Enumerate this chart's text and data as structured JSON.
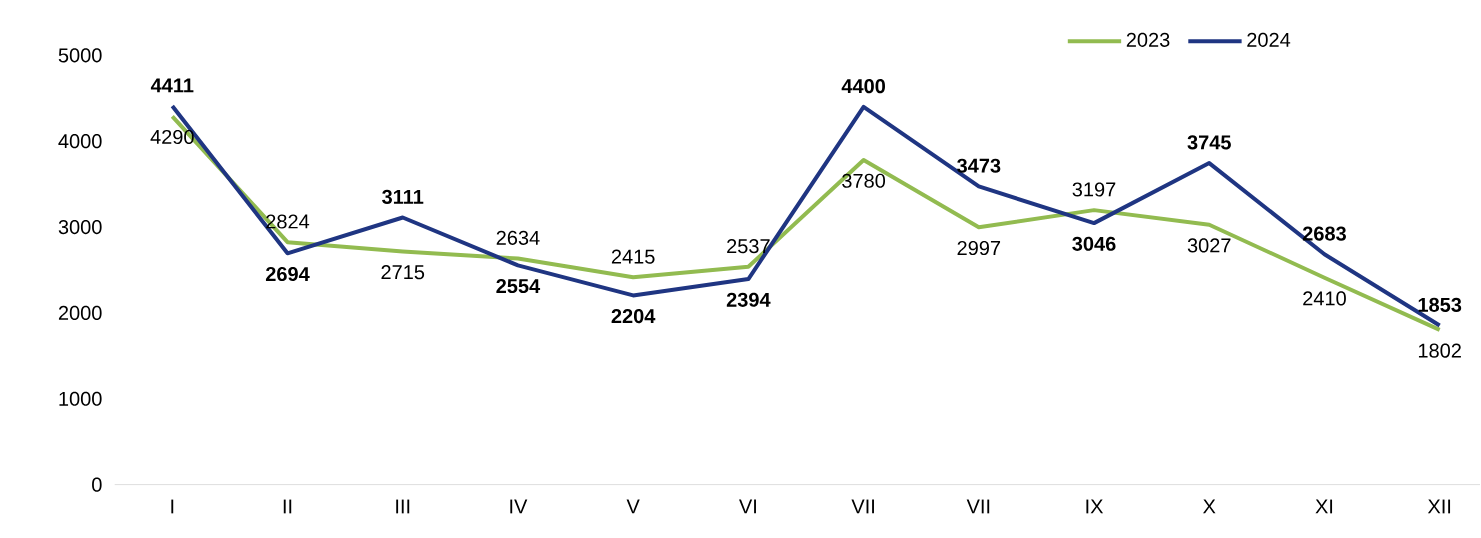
{
  "chart_data": {
    "type": "line",
    "categories": [
      "I",
      "II",
      "III",
      "IV",
      "V",
      "VI",
      "VII",
      "VII",
      "IX",
      "X",
      "XI",
      "XII"
    ],
    "series": [
      {
        "name": "2023",
        "color": "#92bb50",
        "values": [
          4290,
          2824,
          2715,
          2634,
          2415,
          2537,
          3780,
          2997,
          3197,
          3027,
          2410,
          1802
        ]
      },
      {
        "name": "2024",
        "color": "#1f3582",
        "values": [
          4411,
          2694,
          3111,
          2554,
          2204,
          2394,
          4400,
          3473,
          3046,
          3745,
          2683,
          1853
        ]
      }
    ],
    "ylim": [
      0,
      5000
    ],
    "yticks": [
      0,
      1000,
      2000,
      3000,
      4000,
      5000
    ],
    "data_labels": true,
    "legend": "top",
    "marker": "none",
    "line_style": "solid"
  }
}
